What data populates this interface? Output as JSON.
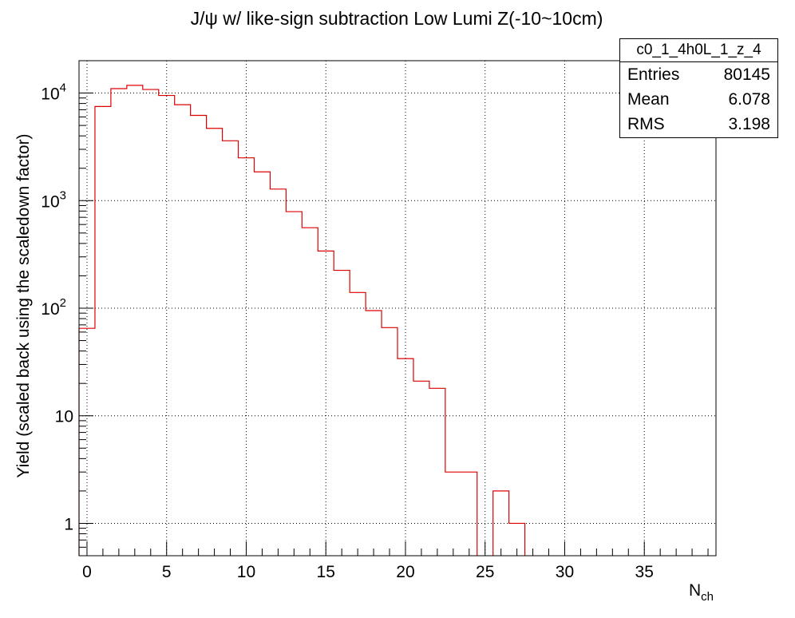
{
  "chart_data": {
    "type": "bar",
    "title": "J/ψ w/ like-sign subtraction Low Lumi Z(-10~10cm)",
    "xlabel": "N",
    "xlabel_sub": "ch",
    "ylabel": "Yield (scaled back using the scaledown factor)",
    "x_range": [
      -0.5,
      39.5
    ],
    "y_range": [
      0.5,
      20000
    ],
    "y_scale": "log",
    "grid": true,
    "x_ticks": [
      0,
      5,
      10,
      15,
      20,
      25,
      30,
      35
    ],
    "x_tick_labels": [
      "0",
      "5",
      "10",
      "15",
      "20",
      "25",
      "30",
      "35"
    ],
    "y_ticks": [
      {
        "value": 1,
        "base": "1",
        "exp": ""
      },
      {
        "value": 10,
        "base": "10",
        "exp": ""
      },
      {
        "value": 100,
        "base": "10",
        "exp": "2"
      },
      {
        "value": 1000,
        "base": "10",
        "exp": "3"
      },
      {
        "value": 10000,
        "base": "10",
        "exp": "4"
      }
    ],
    "line_color": "#dd0000",
    "bin_width": 1,
    "bin_centers": [
      0,
      1,
      2,
      3,
      4,
      5,
      6,
      7,
      8,
      9,
      10,
      11,
      12,
      13,
      14,
      15,
      16,
      17,
      18,
      19,
      20,
      21,
      22,
      23,
      24,
      25,
      26,
      27,
      28,
      29,
      30,
      31,
      32,
      33,
      34,
      35,
      36,
      37,
      38,
      39
    ],
    "values": [
      65,
      7500,
      11000,
      11800,
      10800,
      9500,
      7800,
      6200,
      4700,
      3600,
      2500,
      1850,
      1280,
      790,
      560,
      340,
      225,
      140,
      95,
      66,
      34,
      21,
      18,
      3,
      3,
      0,
      2,
      1,
      0,
      0,
      0,
      0,
      0,
      0,
      0,
      0,
      0,
      0,
      0,
      0
    ],
    "stats": {
      "name": "c0_1_4h0L_1_z_4",
      "entries_label": "Entries",
      "entries": "80145",
      "mean_label": "Mean",
      "mean": "6.078",
      "rms_label": "RMS",
      "rms": "3.198"
    }
  }
}
